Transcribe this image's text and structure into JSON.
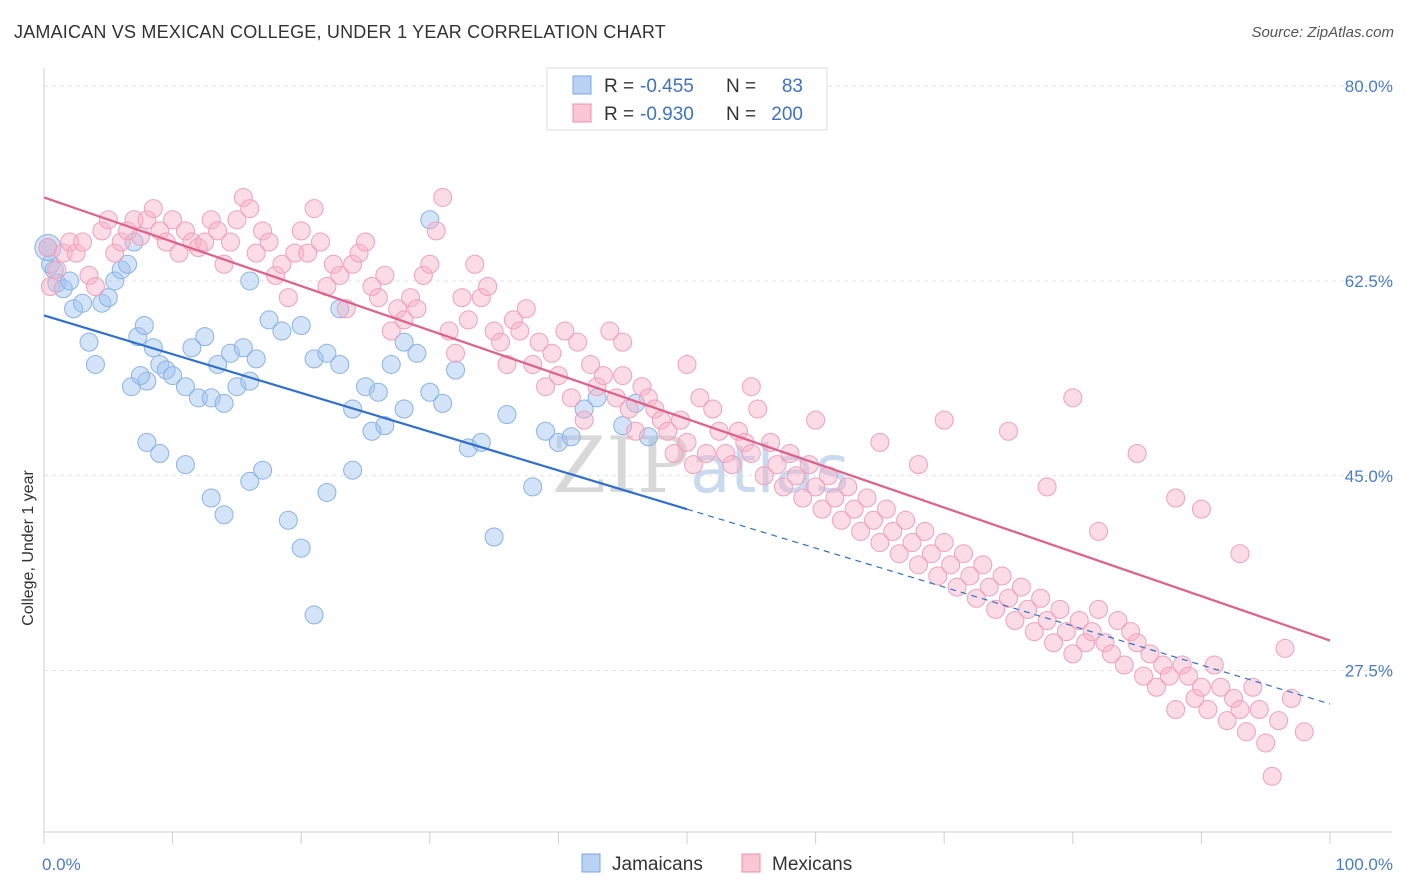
{
  "title": "JAMAICAN VS MEXICAN COLLEGE, UNDER 1 YEAR CORRELATION CHART",
  "source": "Source: ZipAtlas.com",
  "chart_data": {
    "type": "scatter",
    "title": "JAMAICAN VS MEXICAN COLLEGE, UNDER 1 YEAR CORRELATION CHART",
    "xlabel": "",
    "ylabel": "College, Under 1 year",
    "xlim": [
      0,
      100
    ],
    "ylim": [
      13,
      81
    ],
    "x_tick_labels": [
      "0.0%",
      "100.0%"
    ],
    "y_ticks": [
      27.5,
      45.0,
      62.5,
      80.0
    ],
    "y_tick_labels": [
      "27.5%",
      "45.0%",
      "62.5%",
      "80.0%"
    ],
    "grid": true,
    "legend_position": "top-center",
    "colors": {
      "jamaicans": "#7aa7e6",
      "jamaicans_line": "#2f6fce",
      "mexicans": "#f08cab",
      "mexicans_line": "#e0608c"
    },
    "stats": [
      {
        "r_label": "R =",
        "r_value": "-0.455",
        "n_label": "N =",
        "n_value": "83"
      },
      {
        "r_label": "R =",
        "r_value": "-0.930",
        "n_label": "N =",
        "n_value": "200"
      }
    ],
    "series": [
      {
        "name": "Jamaicans",
        "trend": {
          "x0": 0,
          "y0": 59.4,
          "x1": 50,
          "y1": 42.0,
          "dashed_to_x": 100,
          "dashed_to_y": 24.5
        },
        "points": [
          [
            0.3,
            65.5
          ],
          [
            0.5,
            64
          ],
          [
            0.8,
            63.5
          ],
          [
            1,
            62.3
          ],
          [
            1.5,
            61.8
          ],
          [
            2,
            62.5
          ],
          [
            2.3,
            60
          ],
          [
            3,
            60.5
          ],
          [
            3.5,
            57
          ],
          [
            4,
            55
          ],
          [
            4.5,
            60.5
          ],
          [
            5,
            61
          ],
          [
            5.5,
            62.5
          ],
          [
            6,
            63.5
          ],
          [
            6.5,
            64
          ],
          [
            7,
            66
          ],
          [
            7.3,
            57.5
          ],
          [
            7.8,
            58.5
          ],
          [
            8.5,
            56.5
          ],
          [
            9,
            55
          ],
          [
            9.5,
            54.5
          ],
          [
            10,
            54
          ],
          [
            6.8,
            53
          ],
          [
            8,
            53.5
          ],
          [
            11,
            53
          ],
          [
            12,
            52
          ],
          [
            13,
            52
          ],
          [
            14,
            51.5
          ],
          [
            15,
            53
          ],
          [
            16,
            53.5
          ],
          [
            7.5,
            54
          ],
          [
            11.5,
            56.5
          ],
          [
            12.5,
            57.5
          ],
          [
            13.5,
            55
          ],
          [
            14.5,
            56
          ],
          [
            15.5,
            56.5
          ],
          [
            16.5,
            55.5
          ],
          [
            17.5,
            59
          ],
          [
            18.5,
            58
          ],
          [
            20,
            58.5
          ],
          [
            21,
            55.5
          ],
          [
            22,
            56
          ],
          [
            23,
            55
          ],
          [
            24,
            51
          ],
          [
            25,
            53
          ],
          [
            26,
            52.5
          ],
          [
            27,
            55
          ],
          [
            28,
            57
          ],
          [
            29,
            56
          ],
          [
            8,
            48
          ],
          [
            9,
            47
          ],
          [
            11,
            46
          ],
          [
            13,
            43
          ],
          [
            14,
            41.5
          ],
          [
            16,
            44.5
          ],
          [
            17,
            45.5
          ],
          [
            19,
            41
          ],
          [
            20,
            38.5
          ],
          [
            21,
            32.5
          ],
          [
            22,
            43.5
          ],
          [
            24,
            45.5
          ],
          [
            25.5,
            49
          ],
          [
            26.5,
            49.5
          ],
          [
            28,
            51
          ],
          [
            30,
            52.5
          ],
          [
            31,
            51.5
          ],
          [
            32,
            54.5
          ],
          [
            33,
            47.5
          ],
          [
            34,
            48
          ],
          [
            35,
            39.5
          ],
          [
            36,
            50.5
          ],
          [
            38,
            44
          ],
          [
            39,
            49
          ],
          [
            40,
            48
          ],
          [
            41,
            48.5
          ],
          [
            42,
            51
          ],
          [
            43,
            52
          ],
          [
            45,
            49.5
          ],
          [
            46,
            51.5
          ],
          [
            47,
            48.5
          ],
          [
            23,
            60
          ],
          [
            30,
            68
          ],
          [
            16,
            62.5
          ]
        ]
      },
      {
        "name": "Mexicans",
        "trend": {
          "x0": 0,
          "y0": 70.0,
          "x1": 100,
          "y1": 30.2
        },
        "points": [
          [
            0.3,
            65.5
          ],
          [
            0.5,
            62
          ],
          [
            1,
            63.5
          ],
          [
            1.5,
            65
          ],
          [
            2,
            66
          ],
          [
            2.5,
            65
          ],
          [
            3,
            66
          ],
          [
            3.5,
            63
          ],
          [
            4,
            62
          ],
          [
            4.5,
            67
          ],
          [
            5,
            68
          ],
          [
            5.5,
            65
          ],
          [
            6,
            66
          ],
          [
            6.5,
            67
          ],
          [
            7,
            68
          ],
          [
            7.5,
            66.5
          ],
          [
            8,
            68
          ],
          [
            8.5,
            69
          ],
          [
            9,
            67
          ],
          [
            9.5,
            66
          ],
          [
            10,
            68
          ],
          [
            10.5,
            65
          ],
          [
            11,
            67
          ],
          [
            11.5,
            66
          ],
          [
            12,
            65.5
          ],
          [
            12.5,
            66
          ],
          [
            13,
            68
          ],
          [
            13.5,
            67
          ],
          [
            14,
            64
          ],
          [
            14.5,
            66
          ],
          [
            15,
            68
          ],
          [
            15.5,
            70
          ],
          [
            16,
            69
          ],
          [
            16.5,
            65
          ],
          [
            17,
            67
          ],
          [
            17.5,
            66
          ],
          [
            18,
            63
          ],
          [
            18.5,
            64
          ],
          [
            19,
            61
          ],
          [
            19.5,
            65
          ],
          [
            20,
            67
          ],
          [
            20.5,
            65
          ],
          [
            21,
            69
          ],
          [
            21.5,
            66
          ],
          [
            22,
            62
          ],
          [
            22.5,
            64
          ],
          [
            23,
            63
          ],
          [
            23.5,
            60
          ],
          [
            24,
            64
          ],
          [
            24.5,
            65
          ],
          [
            25,
            66
          ],
          [
            25.5,
            62
          ],
          [
            26,
            61
          ],
          [
            26.5,
            63
          ],
          [
            27,
            58
          ],
          [
            27.5,
            60
          ],
          [
            28,
            59
          ],
          [
            28.5,
            61
          ],
          [
            29,
            60
          ],
          [
            29.5,
            63
          ],
          [
            30,
            64
          ],
          [
            30.5,
            67
          ],
          [
            31,
            70
          ],
          [
            31.5,
            58
          ],
          [
            32,
            56
          ],
          [
            32.5,
            61
          ],
          [
            33,
            59
          ],
          [
            33.5,
            64
          ],
          [
            34,
            61
          ],
          [
            34.5,
            62
          ],
          [
            35,
            58
          ],
          [
            35.5,
            57
          ],
          [
            36,
            55
          ],
          [
            36.5,
            59
          ],
          [
            37,
            58
          ],
          [
            37.5,
            60
          ],
          [
            38,
            55
          ],
          [
            38.5,
            57
          ],
          [
            39,
            53
          ],
          [
            39.5,
            56
          ],
          [
            40,
            54
          ],
          [
            40.5,
            58
          ],
          [
            41,
            52
          ],
          [
            41.5,
            57
          ],
          [
            42,
            50
          ],
          [
            42.5,
            55
          ],
          [
            43,
            53
          ],
          [
            43.5,
            54
          ],
          [
            44,
            58
          ],
          [
            44.5,
            52
          ],
          [
            45,
            54
          ],
          [
            45.5,
            51
          ],
          [
            46,
            49
          ],
          [
            46.5,
            53
          ],
          [
            47,
            52
          ],
          [
            47.5,
            51
          ],
          [
            48,
            50
          ],
          [
            48.5,
            49
          ],
          [
            49,
            47
          ],
          [
            49.5,
            50
          ],
          [
            50,
            48
          ],
          [
            50.5,
            46
          ],
          [
            51,
            52
          ],
          [
            51.5,
            47
          ],
          [
            52,
            51
          ],
          [
            52.5,
            49
          ],
          [
            53,
            47
          ],
          [
            53.5,
            46
          ],
          [
            54,
            49
          ],
          [
            54.5,
            48
          ],
          [
            55,
            47
          ],
          [
            55.5,
            51
          ],
          [
            56,
            45
          ],
          [
            56.5,
            48
          ],
          [
            57,
            46
          ],
          [
            57.5,
            44
          ],
          [
            58,
            47
          ],
          [
            58.5,
            45
          ],
          [
            59,
            43
          ],
          [
            59.5,
            46
          ],
          [
            60,
            44
          ],
          [
            60.5,
            42
          ],
          [
            61,
            45
          ],
          [
            61.5,
            43
          ],
          [
            62,
            41
          ],
          [
            62.5,
            44
          ],
          [
            63,
            42
          ],
          [
            63.5,
            40
          ],
          [
            64,
            43
          ],
          [
            64.5,
            41
          ],
          [
            65,
            39
          ],
          [
            65.5,
            42
          ],
          [
            66,
            40
          ],
          [
            66.5,
            38
          ],
          [
            67,
            41
          ],
          [
            67.5,
            39
          ],
          [
            68,
            37
          ],
          [
            68.5,
            40
          ],
          [
            69,
            38
          ],
          [
            69.5,
            36
          ],
          [
            70,
            39
          ],
          [
            70.5,
            37
          ],
          [
            71,
            35
          ],
          [
            71.5,
            38
          ],
          [
            72,
            36
          ],
          [
            72.5,
            34
          ],
          [
            73,
            37
          ],
          [
            73.5,
            35
          ],
          [
            74,
            33
          ],
          [
            74.5,
            36
          ],
          [
            75,
            34
          ],
          [
            75.5,
            32
          ],
          [
            76,
            35
          ],
          [
            76.5,
            33
          ],
          [
            77,
            31
          ],
          [
            77.5,
            34
          ],
          [
            78,
            32
          ],
          [
            78.5,
            30
          ],
          [
            79,
            33
          ],
          [
            79.5,
            31
          ],
          [
            80,
            29
          ],
          [
            80.5,
            32
          ],
          [
            81,
            30
          ],
          [
            81.5,
            31
          ],
          [
            82,
            33
          ],
          [
            82.5,
            30
          ],
          [
            83,
            29
          ],
          [
            83.5,
            32
          ],
          [
            84,
            28
          ],
          [
            84.5,
            31
          ],
          [
            85,
            30
          ],
          [
            85.5,
            27
          ],
          [
            86,
            29
          ],
          [
            86.5,
            26
          ],
          [
            87,
            28
          ],
          [
            87.5,
            27
          ],
          [
            88,
            24
          ],
          [
            88.5,
            28
          ],
          [
            89,
            27
          ],
          [
            89.5,
            25
          ],
          [
            90,
            26
          ],
          [
            90.5,
            24
          ],
          [
            91,
            28
          ],
          [
            91.5,
            26
          ],
          [
            92,
            23
          ],
          [
            92.5,
            25
          ],
          [
            93,
            24
          ],
          [
            93.5,
            22
          ],
          [
            94,
            26
          ],
          [
            94.5,
            24
          ],
          [
            95,
            21
          ],
          [
            95.5,
            18
          ],
          [
            96,
            23
          ],
          [
            97,
            25
          ],
          [
            98,
            22
          ],
          [
            96.5,
            29.5
          ],
          [
            75,
            49
          ],
          [
            80,
            52
          ],
          [
            85,
            47
          ],
          [
            90,
            42
          ],
          [
            70,
            50
          ],
          [
            65,
            48
          ],
          [
            60,
            50
          ],
          [
            55,
            53
          ],
          [
            50,
            55
          ],
          [
            45,
            57
          ],
          [
            88,
            43
          ],
          [
            93,
            38
          ],
          [
            78,
            44
          ],
          [
            82,
            40
          ],
          [
            68,
            46
          ]
        ]
      }
    ]
  },
  "legend": {
    "items": [
      "Jamaicans",
      "Mexicans"
    ]
  },
  "watermark": {
    "zip": "ZIP",
    "atlas": "atlas"
  }
}
